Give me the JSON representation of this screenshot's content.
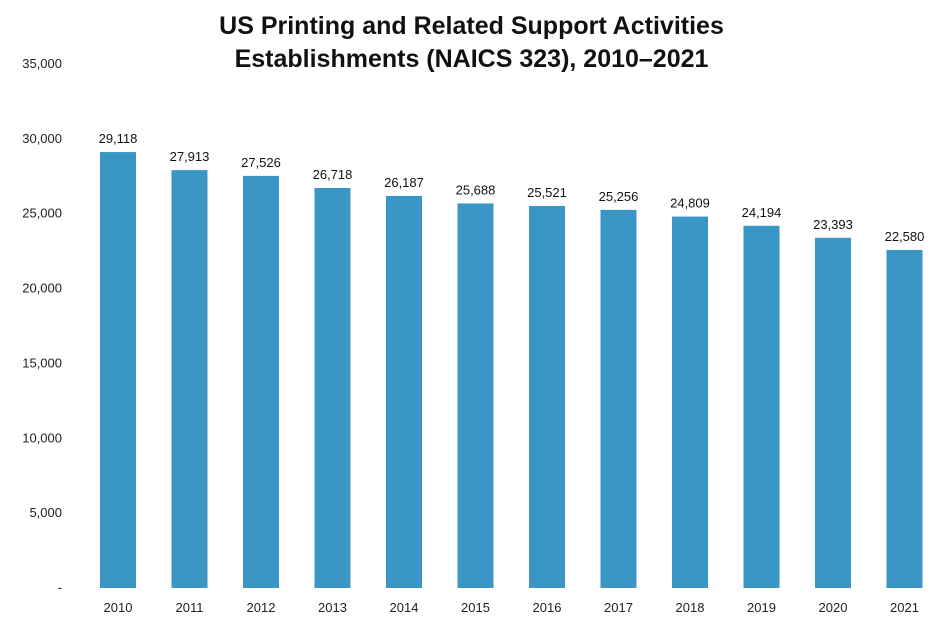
{
  "chart_data": {
    "type": "bar",
    "title_line1": "US Printing and Related Support Activities",
    "title_line2": "Establishments (NAICS 323), 2010–2021",
    "categories": [
      "2010",
      "2011",
      "2012",
      "2013",
      "2014",
      "2015",
      "2016",
      "2017",
      "2018",
      "2019",
      "2020",
      "2021"
    ],
    "values": [
      29118,
      27913,
      27526,
      26718,
      26187,
      25688,
      25521,
      25256,
      24809,
      24194,
      23393,
      22580
    ],
    "data_labels": [
      "29,118",
      "27,913",
      "27,526",
      "26,718",
      "26,187",
      "25,688",
      "25,521",
      "25,256",
      "24,809",
      "24,194",
      "23,393",
      "22,580"
    ],
    "y_ticks": [
      0,
      5000,
      10000,
      15000,
      20000,
      25000,
      30000,
      35000
    ],
    "y_tick_labels": [
      "-",
      "5,000",
      "10,000",
      "15,000",
      "20,000",
      "25,000",
      "30,000",
      "35,000"
    ],
    "ylim": [
      0,
      35000
    ],
    "xlabel": "",
    "ylabel": "",
    "grid": false,
    "legend": "none",
    "bar_color": "#3a96c4"
  }
}
